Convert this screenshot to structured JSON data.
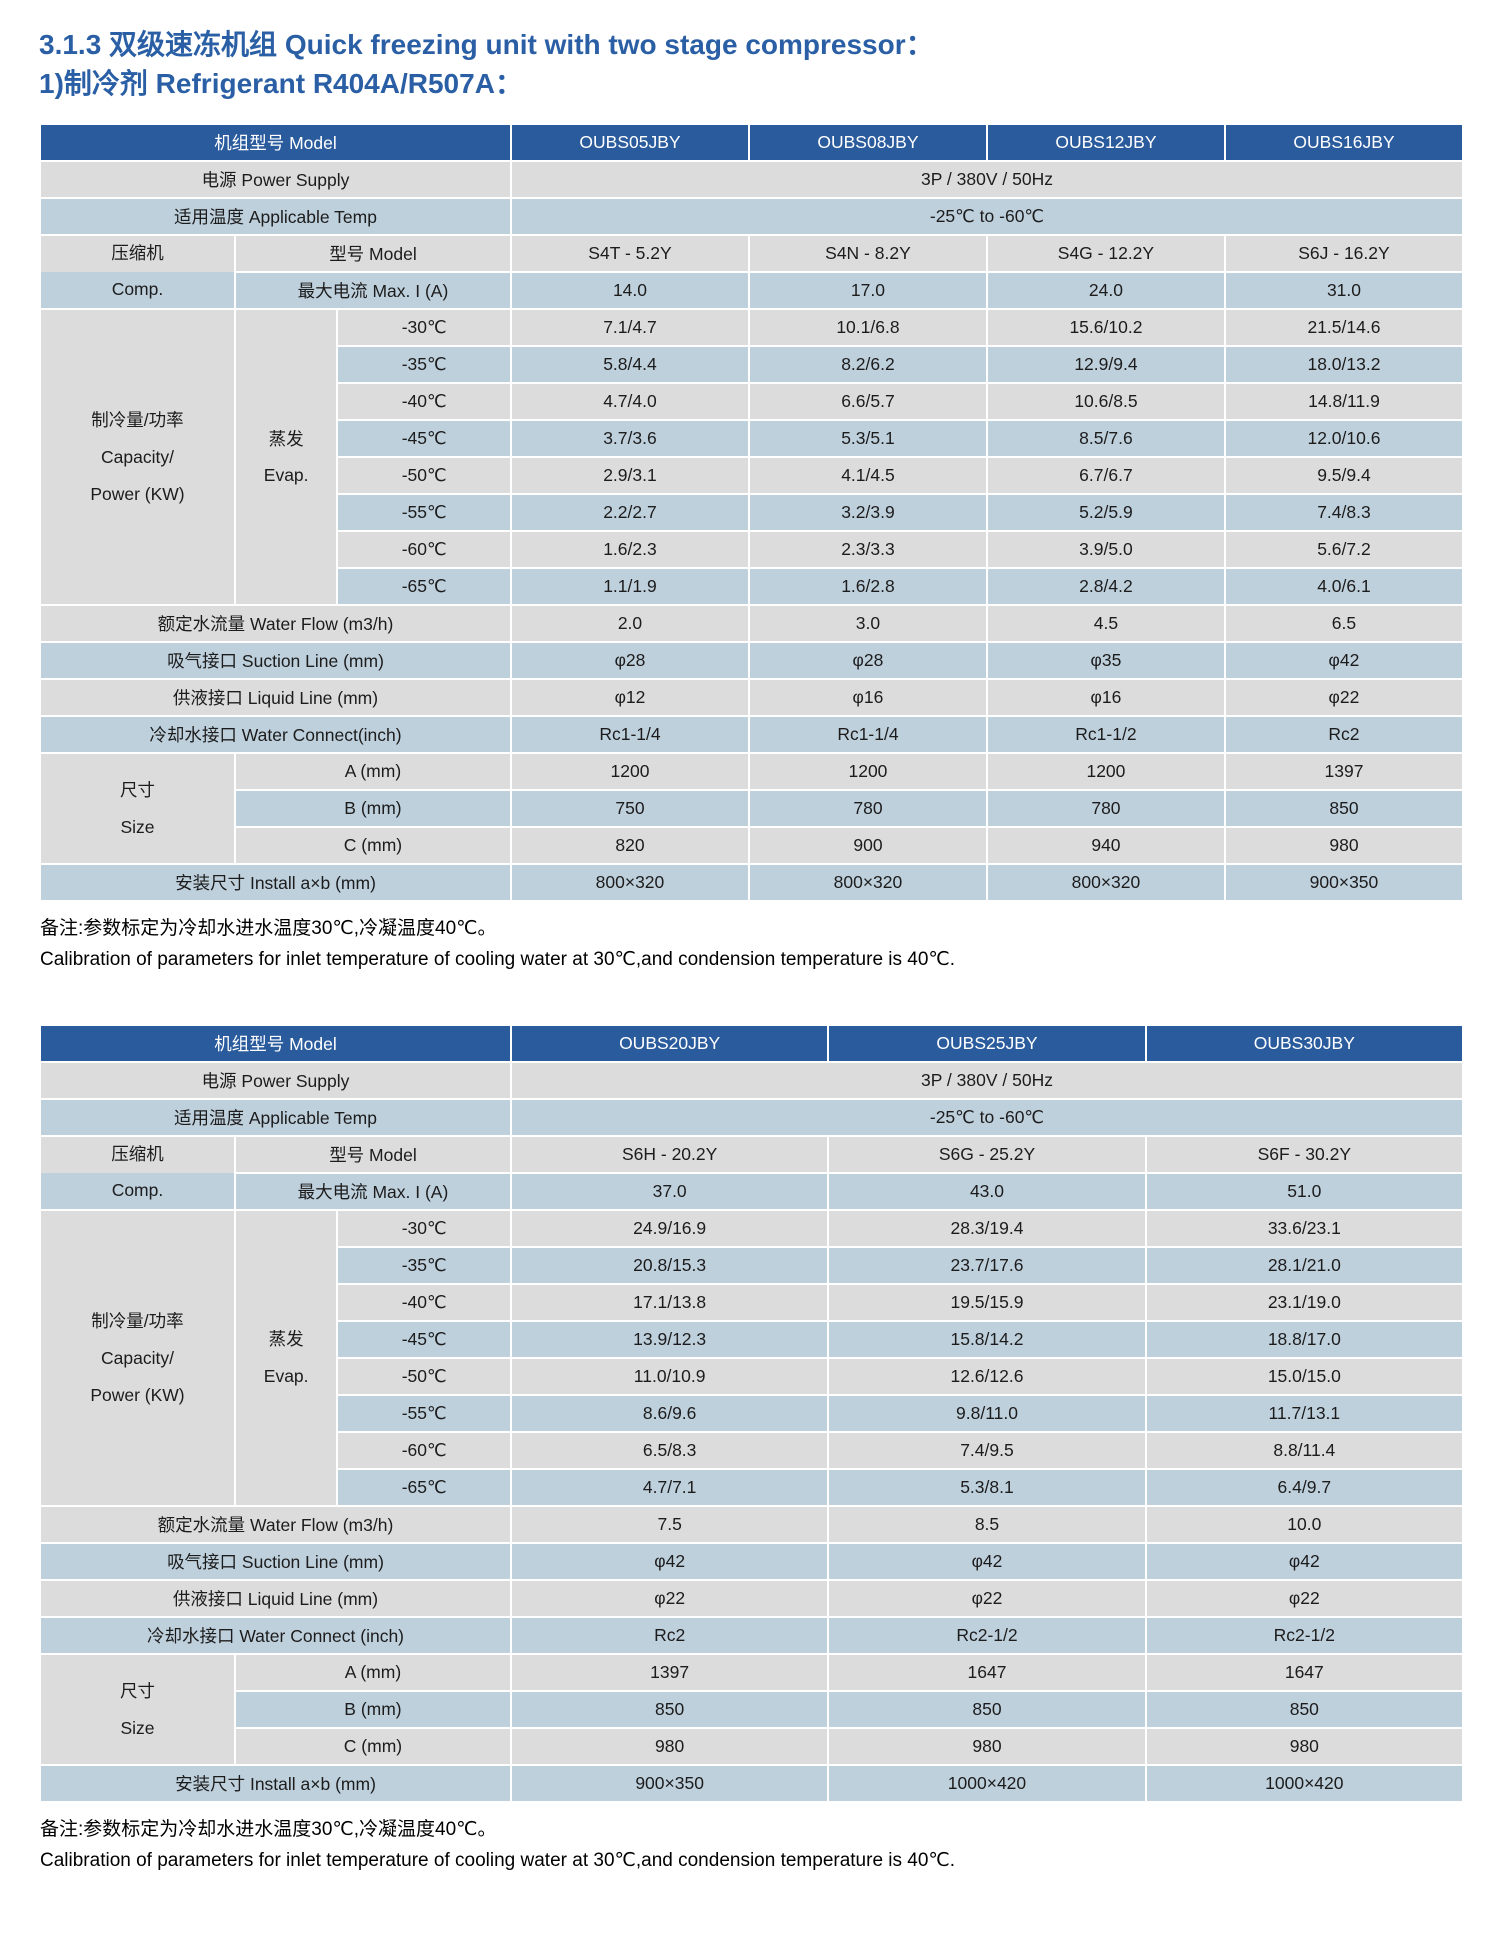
{
  "title": {
    "line1": "3.1.3 双级速冻机组 Quick freezing unit with two stage compressor：",
    "line2": "1)制冷剂 Refrigerant R404A/R507A："
  },
  "colors": {
    "header_bg": "#2a5b9d",
    "row_gray": "#dcdcdc",
    "row_blue": "#bfd0dd",
    "title_text": "#2a5fa5"
  },
  "tables": [
    {
      "header_label": "机组型号 Model",
      "models": [
        "OUBS05JBY",
        "OUBS08JBY",
        "OUBS12JBY",
        "OUBS16JBY"
      ],
      "power_supply": {
        "label": "电源 Power Supply",
        "value": "3P / 380V / 50Hz"
      },
      "applicable_temp": {
        "label": "适用温度 Applicable Temp",
        "value": "-25℃ to -60℃"
      },
      "compressor": {
        "side_cn": "压缩机",
        "side_en": "Comp.",
        "model": {
          "label": "型号 Model",
          "values": [
            "S4T - 5.2Y",
            "S4N - 8.2Y",
            "S4G - 12.2Y",
            "S6J - 16.2Y"
          ]
        },
        "max_current": {
          "label": "最大电流 Max. I (A)",
          "values": [
            "14.0",
            "17.0",
            "24.0",
            "31.0"
          ]
        }
      },
      "capacity": {
        "side_lines": [
          "制冷量/功率",
          "Capacity/",
          "Power (KW)"
        ],
        "evap_cn": "蒸发",
        "evap_en": "Evap.",
        "rows": [
          {
            "temp": "-30℃",
            "values": [
              "7.1/4.7",
              "10.1/6.8",
              "15.6/10.2",
              "21.5/14.6"
            ]
          },
          {
            "temp": "-35℃",
            "values": [
              "5.8/4.4",
              "8.2/6.2",
              "12.9/9.4",
              "18.0/13.2"
            ]
          },
          {
            "temp": "-40℃",
            "values": [
              "4.7/4.0",
              "6.6/5.7",
              "10.6/8.5",
              "14.8/11.9"
            ]
          },
          {
            "temp": "-45℃",
            "values": [
              "3.7/3.6",
              "5.3/5.1",
              "8.5/7.6",
              "12.0/10.6"
            ]
          },
          {
            "temp": "-50℃",
            "values": [
              "2.9/3.1",
              "4.1/4.5",
              "6.7/6.7",
              "9.5/9.4"
            ]
          },
          {
            "temp": "-55℃",
            "values": [
              "2.2/2.7",
              "3.2/3.9",
              "5.2/5.9",
              "7.4/8.3"
            ]
          },
          {
            "temp": "-60℃",
            "values": [
              "1.6/2.3",
              "2.3/3.3",
              "3.9/5.0",
              "5.6/7.2"
            ]
          },
          {
            "temp": "-65℃",
            "values": [
              "1.1/1.9",
              "1.6/2.8",
              "2.8/4.2",
              "4.0/6.1"
            ]
          }
        ]
      },
      "water_flow": {
        "label": "额定水流量 Water Flow (m3/h)",
        "values": [
          "2.0",
          "3.0",
          "4.5",
          "6.5"
        ]
      },
      "suction_line": {
        "label": "吸气接口 Suction Line (mm)",
        "values": [
          "φ28",
          "φ28",
          "φ35",
          "φ42"
        ]
      },
      "liquid_line": {
        "label": "供液接口 Liquid Line (mm)",
        "values": [
          "φ12",
          "φ16",
          "φ16",
          "φ22"
        ]
      },
      "water_connect": {
        "label": "冷却水接口 Water Connect(inch)",
        "values": [
          "Rc1-1/4",
          "Rc1-1/4",
          "Rc1-1/2",
          "Rc2"
        ]
      },
      "size": {
        "side_cn": "尺寸",
        "side_en": "Size",
        "rows": [
          {
            "label": "A (mm)",
            "values": [
              "1200",
              "1200",
              "1200",
              "1397"
            ]
          },
          {
            "label": "B (mm)",
            "values": [
              "750",
              "780",
              "780",
              "850"
            ]
          },
          {
            "label": "C (mm)",
            "values": [
              "820",
              "900",
              "940",
              "980"
            ]
          }
        ]
      },
      "install": {
        "label": "安装尺寸 Install a×b (mm)",
        "values": [
          "800×320",
          "800×320",
          "800×320",
          "900×350"
        ]
      },
      "notes": [
        "备注:参数标定为冷却水进水温度30℃,冷凝温度40℃。",
        "Calibration of parameters for inlet temperature of cooling water at 30℃,and condension temperature is 40℃."
      ]
    },
    {
      "header_label": "机组型号 Model",
      "models": [
        "OUBS20JBY",
        "OUBS25JBY",
        "OUBS30JBY"
      ],
      "power_supply": {
        "label": "电源 Power Supply",
        "value": "3P / 380V / 50Hz"
      },
      "applicable_temp": {
        "label": "适用温度 Applicable Temp",
        "value": "-25℃ to -60℃"
      },
      "compressor": {
        "side_cn": "压缩机",
        "side_en": "Comp.",
        "model": {
          "label": "型号 Model",
          "values": [
            "S6H - 20.2Y",
            "S6G - 25.2Y",
            "S6F - 30.2Y"
          ]
        },
        "max_current": {
          "label": "最大电流 Max. I (A)",
          "values": [
            "37.0",
            "43.0",
            "51.0"
          ]
        }
      },
      "capacity": {
        "side_lines": [
          "制冷量/功率",
          "Capacity/",
          "Power (KW)"
        ],
        "evap_cn": "蒸发",
        "evap_en": "Evap.",
        "rows": [
          {
            "temp": "-30℃",
            "values": [
              "24.9/16.9",
              "28.3/19.4",
              "33.6/23.1"
            ]
          },
          {
            "temp": "-35℃",
            "values": [
              "20.8/15.3",
              "23.7/17.6",
              "28.1/21.0"
            ]
          },
          {
            "temp": "-40℃",
            "values": [
              "17.1/13.8",
              "19.5/15.9",
              "23.1/19.0"
            ]
          },
          {
            "temp": "-45℃",
            "values": [
              "13.9/12.3",
              "15.8/14.2",
              "18.8/17.0"
            ]
          },
          {
            "temp": "-50℃",
            "values": [
              "11.0/10.9",
              "12.6/12.6",
              "15.0/15.0"
            ]
          },
          {
            "temp": "-55℃",
            "values": [
              "8.6/9.6",
              "9.8/11.0",
              "11.7/13.1"
            ]
          },
          {
            "temp": "-60℃",
            "values": [
              "6.5/8.3",
              "7.4/9.5",
              "8.8/11.4"
            ]
          },
          {
            "temp": "-65℃",
            "values": [
              "4.7/7.1",
              "5.3/8.1",
              "6.4/9.7"
            ]
          }
        ]
      },
      "water_flow": {
        "label": "额定水流量 Water Flow (m3/h)",
        "values": [
          "7.5",
          "8.5",
          "10.0"
        ]
      },
      "suction_line": {
        "label": "吸气接口 Suction Line (mm)",
        "values": [
          "φ42",
          "φ42",
          "φ42"
        ]
      },
      "liquid_line": {
        "label": "供液接口 Liquid Line (mm)",
        "values": [
          "φ22",
          "φ22",
          "φ22"
        ]
      },
      "water_connect": {
        "label": "冷却水接口 Water Connect (inch)",
        "values": [
          "Rc2",
          "Rc2-1/2",
          "Rc2-1/2"
        ]
      },
      "size": {
        "side_cn": "尺寸",
        "side_en": "Size",
        "rows": [
          {
            "label": "A (mm)",
            "values": [
              "1397",
              "1647",
              "1647"
            ]
          },
          {
            "label": "B (mm)",
            "values": [
              "850",
              "850",
              "850"
            ]
          },
          {
            "label": "C (mm)",
            "values": [
              "980",
              "980",
              "980"
            ]
          }
        ]
      },
      "install": {
        "label": "安装尺寸 Install a×b (mm)",
        "values": [
          "900×350",
          "1000×420",
          "1000×420"
        ]
      },
      "notes": [
        "备注:参数标定为冷却水进水温度30℃,冷凝温度40℃。",
        "Calibration of parameters for inlet temperature of cooling water at 30℃,and condension temperature is 40℃."
      ]
    }
  ]
}
